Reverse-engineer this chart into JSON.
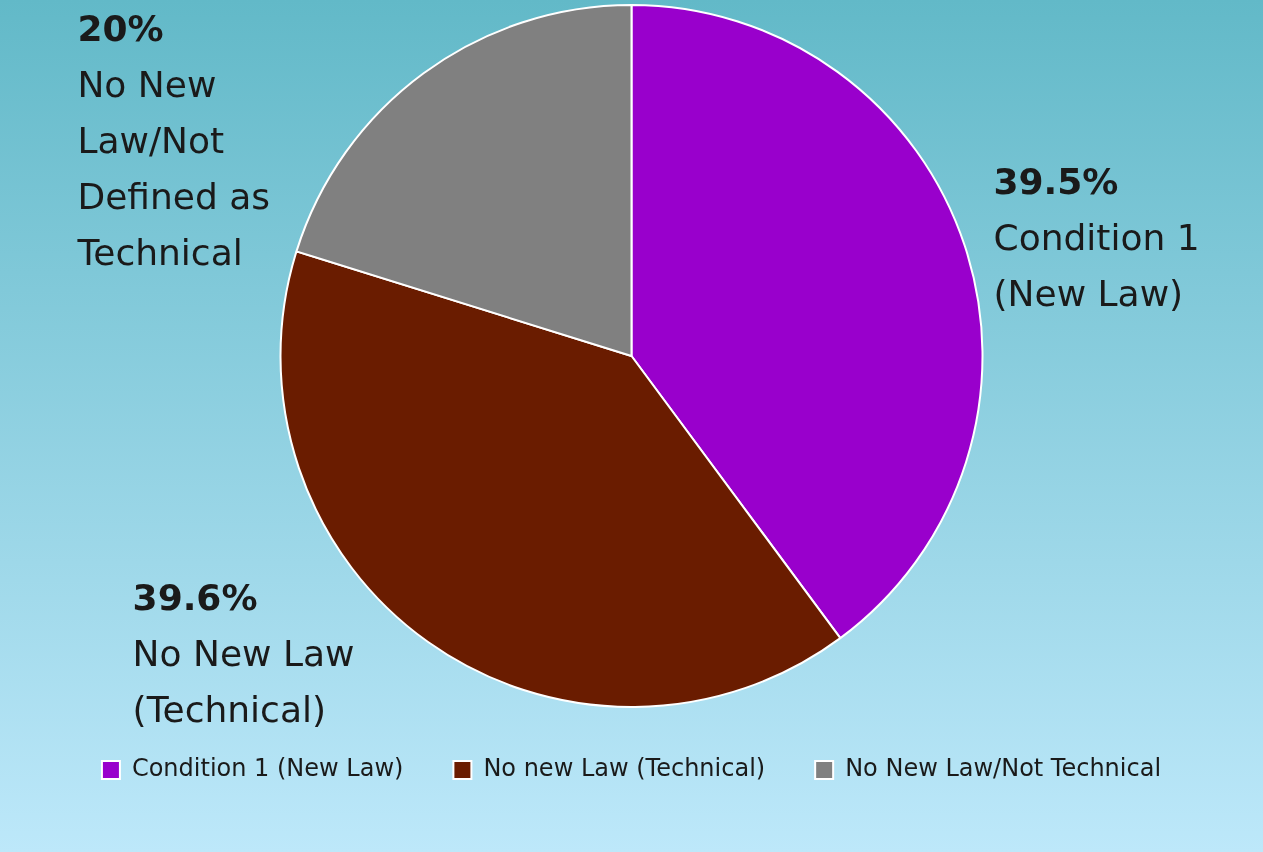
{
  "chart_data": {
    "type": "pie",
    "categories": [
      "Condition 1 (New Law)",
      "No new Law (Technical)",
      "No New Law/Not Technical"
    ],
    "values": [
      39.5,
      39.6,
      20
    ],
    "colors": [
      "#9900cc",
      "#6a1c00",
      "#808080"
    ],
    "value_labels": [
      "39.5%",
      "39.6%",
      "20%"
    ],
    "annotations": [
      "Condition 1 (New Law)",
      "No New Law (Technical)",
      "No New Law/Not Defined as Technical"
    ],
    "legend": "bottom"
  }
}
